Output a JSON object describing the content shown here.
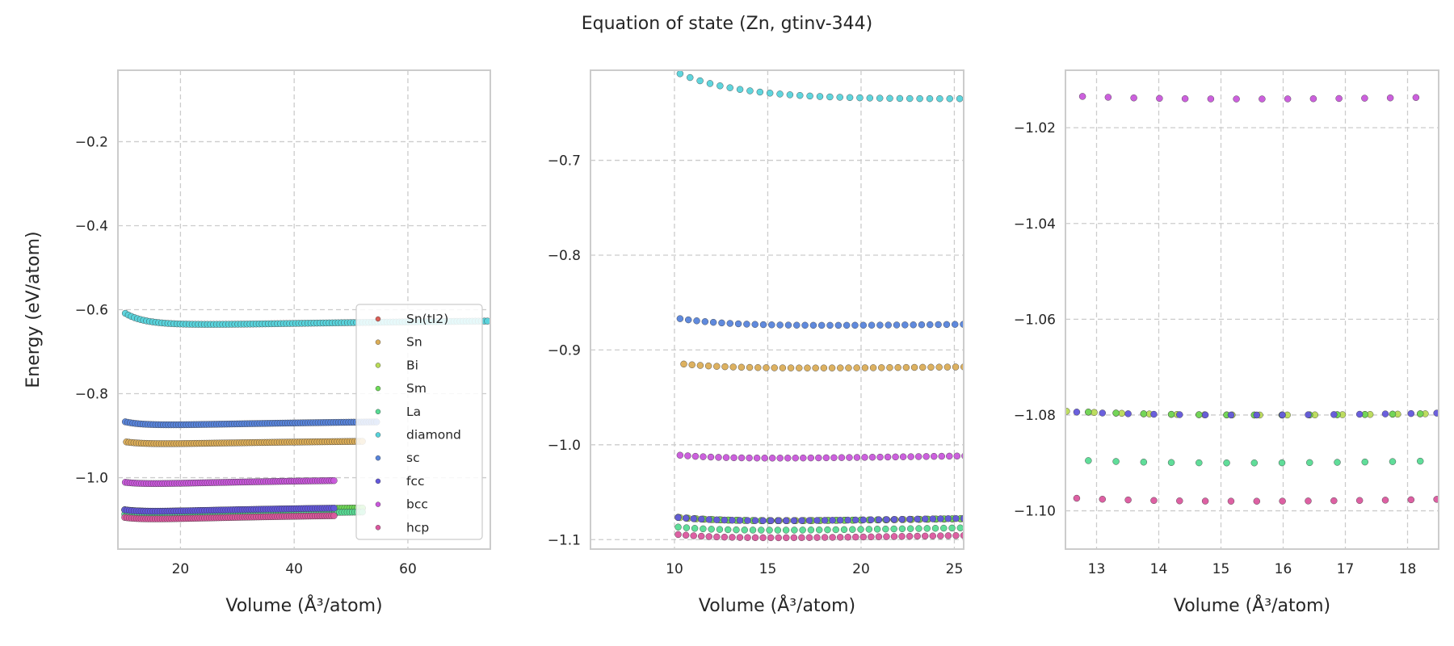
{
  "chart_data": {
    "title": "Equation of state (Zn, gtinv-344)",
    "type": "scatter",
    "colors": {
      "Sn(tI2)": "#db5f57",
      "Sn": "#dbad57",
      "Bi": "#b9db57",
      "Sm": "#6edb57",
      "La": "#57db94",
      "diamond": "#57d3db",
      "sc": "#5784db",
      "fcc": "#6357db",
      "bcc": "#c957db",
      "hcp": "#db579e"
    },
    "legend": [
      "Sn(tI2)",
      "Sn",
      "Bi",
      "Sm",
      "La",
      "diamond",
      "sc",
      "fcc",
      "bcc",
      "hcp"
    ],
    "legend_position": "lower-right",
    "grid": true,
    "panels": [
      {
        "xlabel": "Volume (Å³/atom)",
        "ylabel": "Energy (eV/atom)",
        "xlim": [
          9.0,
          74.5
        ],
        "ylim": [
          -1.17,
          -0.03
        ],
        "xticks": [
          20,
          40,
          60
        ],
        "xtick_labels": [
          "20",
          "40",
          "60"
        ],
        "yticks": [
          -1.0,
          -0.8,
          -0.6,
          -0.4,
          -0.2
        ],
        "ytick_labels": [
          "−1.0",
          "−0.8",
          "−0.6",
          "−0.4",
          "−0.2"
        ],
        "show_legend": true
      },
      {
        "xlabel": "Volume (Å³/atom)",
        "ylabel": "",
        "xlim": [
          5.5,
          25.5
        ],
        "ylim": [
          -1.11,
          -0.605
        ],
        "xticks": [
          10,
          15,
          20,
          25
        ],
        "xtick_labels": [
          "10",
          "15",
          "20",
          "25"
        ],
        "yticks": [
          -1.1,
          -1.0,
          -0.9,
          -0.8,
          -0.7
        ],
        "ytick_labels": [
          "−1.1",
          "−1.0",
          "−0.9",
          "−0.8",
          "−0.7"
        ],
        "show_legend": false
      },
      {
        "xlabel": "Volume (Å³/atom)",
        "ylabel": "",
        "xlim": [
          12.5,
          18.5
        ],
        "ylim": [
          -1.108,
          -1.008
        ],
        "xticks": [
          13,
          14,
          15,
          16,
          17,
          18
        ],
        "xtick_labels": [
          "13",
          "14",
          "15",
          "16",
          "17",
          "18"
        ],
        "yticks": [
          -1.1,
          -1.08,
          -1.06,
          -1.04,
          -1.02
        ],
        "ytick_labels": [
          "−1.10",
          "−1.08",
          "−1.06",
          "−1.04",
          "−1.02"
        ],
        "show_legend": false
      }
    ],
    "series": [
      {
        "name": "Sn(tI2)",
        "model": "birch",
        "E0": -1.08,
        "V0": 15.7,
        "B": 0.0016,
        "Bp": 4.5,
        "vmin": 10.2,
        "vmax": 52.0,
        "n": 95
      },
      {
        "name": "Sn",
        "model": "birch",
        "E0": -0.919,
        "V0": 17.4,
        "B": 0.0012,
        "Bp": 4.5,
        "vmin": 10.5,
        "vmax": 52.0,
        "n": 95
      },
      {
        "name": "Bi",
        "model": "birch",
        "E0": -1.08,
        "V0": 15.7,
        "B": 0.0016,
        "Bp": 4.5,
        "vmin": 10.3,
        "vmax": 52.0,
        "n": 95
      },
      {
        "name": "Sm",
        "model": "birch",
        "E0": -1.08,
        "V0": 15.7,
        "B": 0.0017,
        "Bp": 4.5,
        "vmin": 10.2,
        "vmax": 52.0,
        "n": 95
      },
      {
        "name": "La",
        "model": "birch",
        "E0": -1.09,
        "V0": 15.3,
        "B": 0.0018,
        "Bp": 4.5,
        "vmin": 10.2,
        "vmax": 52.0,
        "n": 95
      },
      {
        "name": "diamond",
        "model": "birch",
        "E0": -0.635,
        "V0": 25.0,
        "B": 0.0012,
        "Bp": 4.5,
        "vmin": 10.3,
        "vmax": 74.0,
        "n": 120
      },
      {
        "name": "sc",
        "model": "birch",
        "E0": -0.874,
        "V0": 18.3,
        "B": 0.0014,
        "Bp": 4.5,
        "vmin": 10.3,
        "vmax": 54.5,
        "n": 100
      },
      {
        "name": "fcc",
        "model": "birch",
        "E0": -1.08,
        "V0": 15.4,
        "B": 0.0018,
        "Bp": 4.5,
        "vmin": 10.2,
        "vmax": 47.0,
        "n": 90
      },
      {
        "name": "bcc",
        "model": "birch",
        "E0": -1.014,
        "V0": 15.4,
        "B": 0.0017,
        "Bp": 4.5,
        "vmin": 10.3,
        "vmax": 47.0,
        "n": 90
      },
      {
        "name": "hcp",
        "model": "birch",
        "E0": -1.098,
        "V0": 15.4,
        "B": 0.0018,
        "Bp": 4.5,
        "vmin": 10.2,
        "vmax": 47.0,
        "n": 90
      }
    ]
  }
}
